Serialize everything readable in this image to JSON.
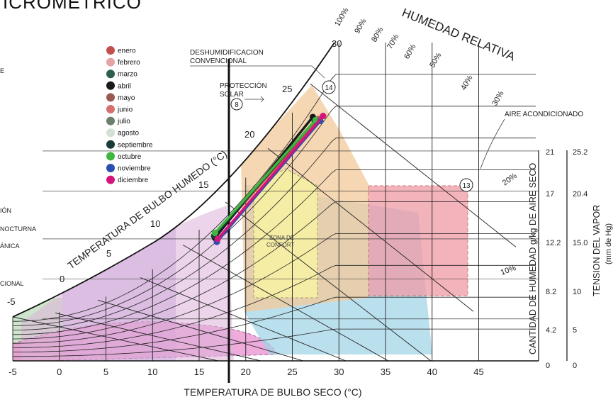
{
  "title_fragment": "ICROMETRICO",
  "left_labels": [
    "E",
    "IÓN",
    "NOCTURNA",
    "ÁNICA",
    "CIONAL"
  ],
  "annotations": {
    "humedad_relativa": "HUMEDAD RELATIVA",
    "bulbo_humedo": "TEMPERATURA DE BULBO HUMEDO (°C)",
    "deshumidificacion_1": "DESHUMIDIFICACION",
    "deshumidificacion_2": "CONVENCIONAL",
    "proteccion_1": "PROTECCIÓN",
    "proteccion_2": "SOLAR",
    "aire_acondicionado": "AIRE ACONDICIONADO",
    "zona_confort_1": "ZONA DE",
    "zona_confort_2": "CONFORT",
    "marker_8": "8",
    "marker_13": "13",
    "marker_14": "14"
  },
  "chart_data": {
    "type": "scatter",
    "xlabel": "TEMPERATURA DE BULBO SECO (°C)",
    "x_ticks": [
      "-5",
      "0",
      "5",
      "10",
      "15",
      "20",
      "25",
      "30",
      "35",
      "40",
      "45"
    ],
    "xlim": [
      -5,
      45
    ],
    "humidity_axis": {
      "label": "CANTIDAD DE HUMEDAD g/kg DE AIRE SECO",
      "ticks": [
        "0",
        "4.2",
        "8.2",
        "12.2",
        "17",
        "21"
      ]
    },
    "vapor_axis": {
      "label_1": "TENSION DEL VAPOR",
      "label_2": "(mm de Hg)",
      "ticks": [
        "0",
        "5",
        "10",
        "15.0",
        "20.4",
        "25.2"
      ]
    },
    "wet_bulb_ticks": [
      "-5",
      "0",
      "5",
      "10",
      "15",
      "20",
      "25",
      "30"
    ],
    "relative_humidity_ticks": [
      "100%",
      "90%",
      "80%",
      "70%",
      "60%",
      "50%",
      "40%",
      "30%",
      "20%",
      "10%"
    ],
    "legend": [
      {
        "name": "enero",
        "color": "#c0504d"
      },
      {
        "name": "febrero",
        "color": "#e6a3a3"
      },
      {
        "name": "marzo",
        "color": "#2e5e4e"
      },
      {
        "name": "abril",
        "color": "#1a1a1a"
      },
      {
        "name": "mayo",
        "color": "#9a5a52"
      },
      {
        "name": "junio",
        "color": "#d6706e"
      },
      {
        "name": "julio",
        "color": "#6b7f6b"
      },
      {
        "name": "agosto",
        "color": "#d3e0d3"
      },
      {
        "name": "septiembre",
        "color": "#173b36"
      },
      {
        "name": "octubre",
        "color": "#3fb63f"
      },
      {
        "name": "noviembre",
        "color": "#2a4fb0"
      },
      {
        "name": "diciembre",
        "color": "#d4147a"
      }
    ],
    "monthly_lines": [
      {
        "name": "enero",
        "color": "#c0504d",
        "start": [
          16.8,
          12.6
        ],
        "end": [
          27.8,
          24.2
        ]
      },
      {
        "name": "abril",
        "color": "#1a1a1a",
        "start": [
          16.7,
          12.3
        ],
        "end": [
          27.2,
          24.4
        ]
      },
      {
        "name": "septiembre",
        "color": "#173b36",
        "start": [
          16.6,
          12.5
        ],
        "end": [
          27.4,
          24.0
        ]
      },
      {
        "name": "octubre",
        "color": "#3fb63f",
        "start": [
          16.7,
          12.8
        ],
        "end": [
          27.5,
          24.1
        ]
      },
      {
        "name": "noviembre",
        "color": "#2a4fb0",
        "start": [
          16.9,
          11.9
        ],
        "end": [
          28.0,
          24.0
        ]
      },
      {
        "name": "diciembre",
        "color": "#d4147a",
        "start": [
          17.0,
          12.2
        ],
        "end": [
          28.3,
          24.5
        ]
      }
    ]
  }
}
